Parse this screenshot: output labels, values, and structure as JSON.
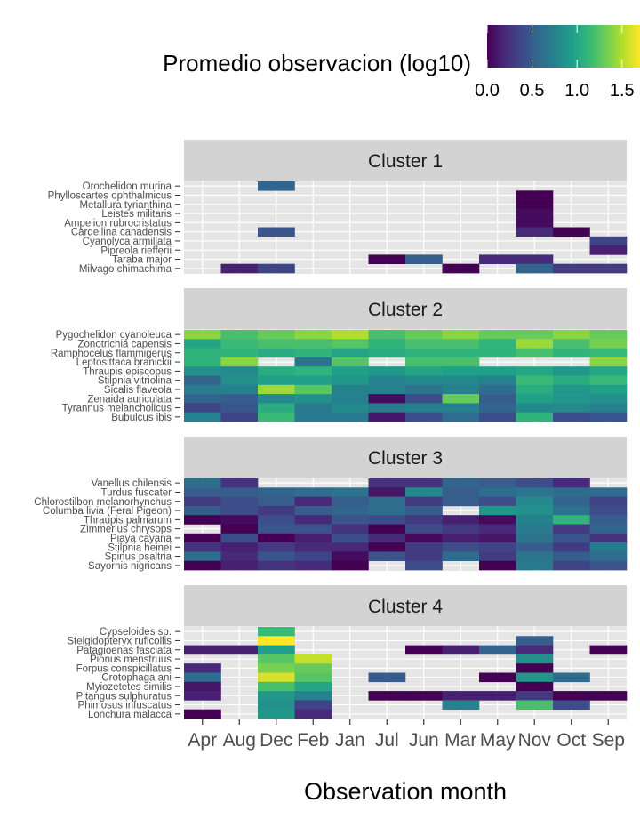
{
  "legend": {
    "title": "Promedio  observacion (log10)",
    "ticks": [
      "0.0",
      "0.5",
      "1.0",
      "1.5"
    ],
    "tick_values": [
      0,
      0.5,
      1.0,
      1.5
    ],
    "range": [
      0,
      1.7
    ],
    "colors": [
      "#440154",
      "#482878",
      "#3e4989",
      "#31688e",
      "#26828e",
      "#1f9e89",
      "#35b779",
      "#6ece58",
      "#b5de2b",
      "#fde725"
    ]
  },
  "axis": {
    "xlabel": "Observation month",
    "months": [
      "Apr",
      "Aug",
      "Dec",
      "Feb",
      "Jan",
      "Jul",
      "Jun",
      "Mar",
      "May",
      "Nov",
      "Oct",
      "Sep"
    ]
  },
  "style": {
    "panel_bg": "#e5e5e5",
    "strip_bg": "#d3d3d3",
    "grid": "#ffffff"
  },
  "chart_data": {
    "type": "heatmap",
    "xlabel": "Observation month",
    "color_scale": "viridis",
    "value_range": [
      0,
      1.7
    ],
    "clusters": [
      {
        "name": "Cluster 1",
        "species": [
          "Orochelidon murina",
          "Phylloscartes ophthalmicus",
          "Metallura tyrianthina",
          "Leistes militaris",
          "Ampelion rubrocristatus",
          "Cardellina canadensis",
          "Cyanolyca armillata",
          "Pipreola riefferii",
          "Taraba major",
          "Milvago chimachima"
        ],
        "values": [
          [
            null,
            null,
            0.55,
            null,
            null,
            null,
            null,
            null,
            null,
            null,
            null,
            null
          ],
          [
            null,
            null,
            null,
            null,
            null,
            null,
            null,
            null,
            null,
            0.0,
            null,
            null
          ],
          [
            null,
            null,
            null,
            null,
            null,
            null,
            null,
            null,
            null,
            0.0,
            null,
            null
          ],
          [
            null,
            null,
            null,
            null,
            null,
            null,
            null,
            null,
            null,
            0.05,
            null,
            null
          ],
          [
            null,
            null,
            null,
            null,
            null,
            null,
            null,
            null,
            null,
            0.05,
            null,
            null
          ],
          [
            null,
            null,
            0.45,
            null,
            null,
            null,
            null,
            null,
            null,
            0.2,
            0.0,
            null
          ],
          [
            null,
            null,
            null,
            null,
            null,
            null,
            null,
            null,
            null,
            null,
            null,
            0.35
          ],
          [
            null,
            null,
            null,
            null,
            null,
            null,
            null,
            null,
            null,
            null,
            null,
            0.15
          ],
          [
            null,
            null,
            null,
            null,
            null,
            0.0,
            0.5,
            null,
            0.2,
            0.2,
            null,
            null
          ],
          [
            null,
            0.15,
            0.35,
            null,
            null,
            null,
            null,
            0.0,
            null,
            0.55,
            0.3,
            0.3
          ]
        ]
      },
      {
        "name": "Cluster 2",
        "species": [
          "Pygochelidon cyanoleuca",
          "Zonotrichia capensis",
          "Ramphocelus flammigerus",
          "Leptosittaca branickii",
          "Thraupis episcopus",
          "Stilpnia vitriolina",
          "Sicalis flaveola",
          "Zenaida auriculata",
          "Tyrannus melancholicus",
          "Bubulcus ibis"
        ],
        "values": [
          [
            1.4,
            1.2,
            1.3,
            1.4,
            1.5,
            1.2,
            1.3,
            1.4,
            1.3,
            1.3,
            1.4,
            1.3
          ],
          [
            1.0,
            1.15,
            1.2,
            1.2,
            1.25,
            1.1,
            1.2,
            1.2,
            1.1,
            1.45,
            1.2,
            1.35
          ],
          [
            1.1,
            1.1,
            1.05,
            1.1,
            1.0,
            1.05,
            1.1,
            1.1,
            1.1,
            1.2,
            1.1,
            1.15
          ],
          [
            1.1,
            1.4,
            null,
            0.65,
            1.25,
            null,
            1.2,
            1.2,
            null,
            null,
            null,
            1.4
          ],
          [
            0.85,
            0.8,
            1.05,
            1.1,
            0.95,
            0.9,
            1.0,
            0.95,
            0.95,
            1.0,
            0.9,
            1.0
          ],
          [
            0.55,
            0.85,
            0.95,
            0.95,
            0.9,
            0.75,
            0.8,
            0.8,
            0.75,
            1.15,
            1.05,
            1.15
          ],
          [
            0.7,
            0.75,
            1.45,
            1.25,
            0.75,
            0.75,
            0.65,
            0.75,
            0.6,
            1.05,
            0.9,
            0.95
          ],
          [
            0.55,
            0.5,
            0.8,
            0.85,
            0.75,
            0.05,
            0.4,
            1.3,
            0.5,
            0.95,
            0.9,
            0.85
          ],
          [
            0.35,
            0.45,
            1.05,
            0.7,
            0.8,
            0.7,
            0.75,
            0.75,
            0.55,
            0.8,
            0.8,
            0.75
          ],
          [
            0.75,
            0.35,
            1.15,
            0.7,
            0.7,
            0.1,
            0.4,
            0.6,
            0.4,
            1.1,
            0.4,
            0.45
          ]
        ]
      },
      {
        "name": "Cluster 3",
        "species": [
          "Vanellus chilensis",
          "Turdus fuscater",
          "Chlorostilbon melanorhynchus",
          "Columba livia (Feral Pigeon)",
          "Thraupis palmarum",
          "Zimmerius chrysops",
          "Piaya cayana",
          "Stilpnia heinei",
          "Spinus psaltria",
          "Sayornis nigricans"
        ],
        "values": [
          [
            0.6,
            0.25,
            null,
            null,
            null,
            0.25,
            0.25,
            0.55,
            0.5,
            0.4,
            0.2,
            null
          ],
          [
            0.5,
            0.5,
            0.55,
            0.6,
            0.65,
            0.1,
            0.8,
            0.5,
            0.6,
            0.65,
            0.6,
            0.6
          ],
          [
            0.3,
            0.4,
            0.5,
            0.2,
            0.5,
            0.6,
            0.3,
            0.5,
            0.4,
            0.8,
            0.55,
            0.35
          ],
          [
            0.5,
            0.4,
            0.3,
            0.5,
            0.55,
            0.6,
            0.5,
            null,
            0.9,
            0.85,
            0.65,
            0.4
          ],
          [
            0.0,
            0.05,
            0.4,
            0.2,
            0.45,
            0.4,
            0.3,
            0.15,
            0.05,
            0.75,
            1.1,
            0.5
          ],
          [
            null,
            0.0,
            0.45,
            0.45,
            0.25,
            0.0,
            0.4,
            0.3,
            0.2,
            0.7,
            0.3,
            0.55
          ],
          [
            0.0,
            0.4,
            0.0,
            0.15,
            0.4,
            0.2,
            0.05,
            0.15,
            0.1,
            0.65,
            0.45,
            0.25
          ],
          [
            0.25,
            0.15,
            0.3,
            0.2,
            0.2,
            0.0,
            0.3,
            0.4,
            0.35,
            0.5,
            0.3,
            0.7
          ],
          [
            0.6,
            0.2,
            0.45,
            0.35,
            0.05,
            0.45,
            0.3,
            0.6,
            0.3,
            0.65,
            0.5,
            0.6
          ],
          [
            0.0,
            0.15,
            0.25,
            0.2,
            0.0,
            null,
            0.4,
            null,
            0.0,
            0.7,
            0.35,
            0.45
          ]
        ]
      },
      {
        "name": "Cluster 4",
        "species": [
          "Cypseloides sp.",
          "Stelgidopteryx ruficollis",
          "Patagioenas fasciata",
          "Pionus menstruus",
          "Forpus conspicillatus",
          "Crotophaga ani",
          "Myiozetetes similis",
          "Pitangus sulphuratus",
          "Phimosus infuscatus",
          "Lonchura malacca"
        ],
        "values": [
          [
            null,
            null,
            1.15,
            null,
            null,
            null,
            null,
            null,
            null,
            null,
            null,
            null
          ],
          [
            null,
            null,
            1.7,
            null,
            null,
            null,
            null,
            null,
            null,
            0.5,
            null,
            null
          ],
          [
            0.15,
            0.15,
            0.95,
            null,
            null,
            null,
            0.0,
            0.15,
            0.55,
            0.2,
            null,
            0.0
          ],
          [
            null,
            null,
            1.25,
            1.55,
            null,
            null,
            null,
            null,
            null,
            0.85,
            null,
            null
          ],
          [
            0.2,
            null,
            1.35,
            1.3,
            null,
            null,
            null,
            null,
            null,
            0.0,
            null,
            null
          ],
          [
            0.6,
            null,
            1.6,
            1.25,
            null,
            0.5,
            null,
            null,
            0.0,
            0.9,
            0.6,
            null
          ],
          [
            0.1,
            null,
            1.2,
            1.0,
            null,
            null,
            null,
            null,
            null,
            0.0,
            null,
            null
          ],
          [
            0.15,
            null,
            0.9,
            0.75,
            null,
            0.0,
            0.0,
            0.15,
            0.15,
            0.3,
            0.0,
            0.0
          ],
          [
            null,
            null,
            0.85,
            0.35,
            null,
            null,
            null,
            0.75,
            null,
            1.2,
            0.4,
            null
          ],
          [
            0.0,
            null,
            0.9,
            0.2,
            null,
            null,
            null,
            null,
            null,
            null,
            null,
            null
          ]
        ]
      }
    ]
  }
}
